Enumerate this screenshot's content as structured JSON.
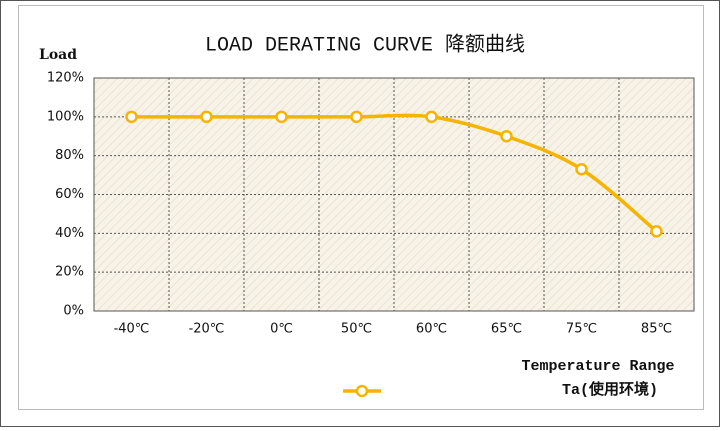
{
  "chart_data": {
    "type": "line",
    "title": "LOAD DERATING CURVE 降额曲线",
    "y_label": "Load",
    "x_label": "Temperature Range",
    "categories": [
      "-40℃",
      "-20℃",
      "0℃",
      "50℃",
      "60℃",
      "65℃",
      "75℃",
      "85℃"
    ],
    "series": [
      {
        "name": "Ta(使用环境)",
        "color": "#f5b400",
        "values": [
          100,
          100,
          100,
          100,
          100,
          90,
          73,
          41
        ]
      }
    ],
    "ylim": [
      0,
      120
    ],
    "yticks": [
      {
        "value": 0,
        "label": "0%"
      },
      {
        "value": 20,
        "label": "20%"
      },
      {
        "value": 40,
        "label": "40%"
      },
      {
        "value": 60,
        "label": "60%"
      },
      {
        "value": 80,
        "label": "80%"
      },
      {
        "value": 100,
        "label": "100%"
      },
      {
        "value": 120,
        "label": "120%"
      }
    ],
    "grid": true,
    "legend": "bottom"
  }
}
